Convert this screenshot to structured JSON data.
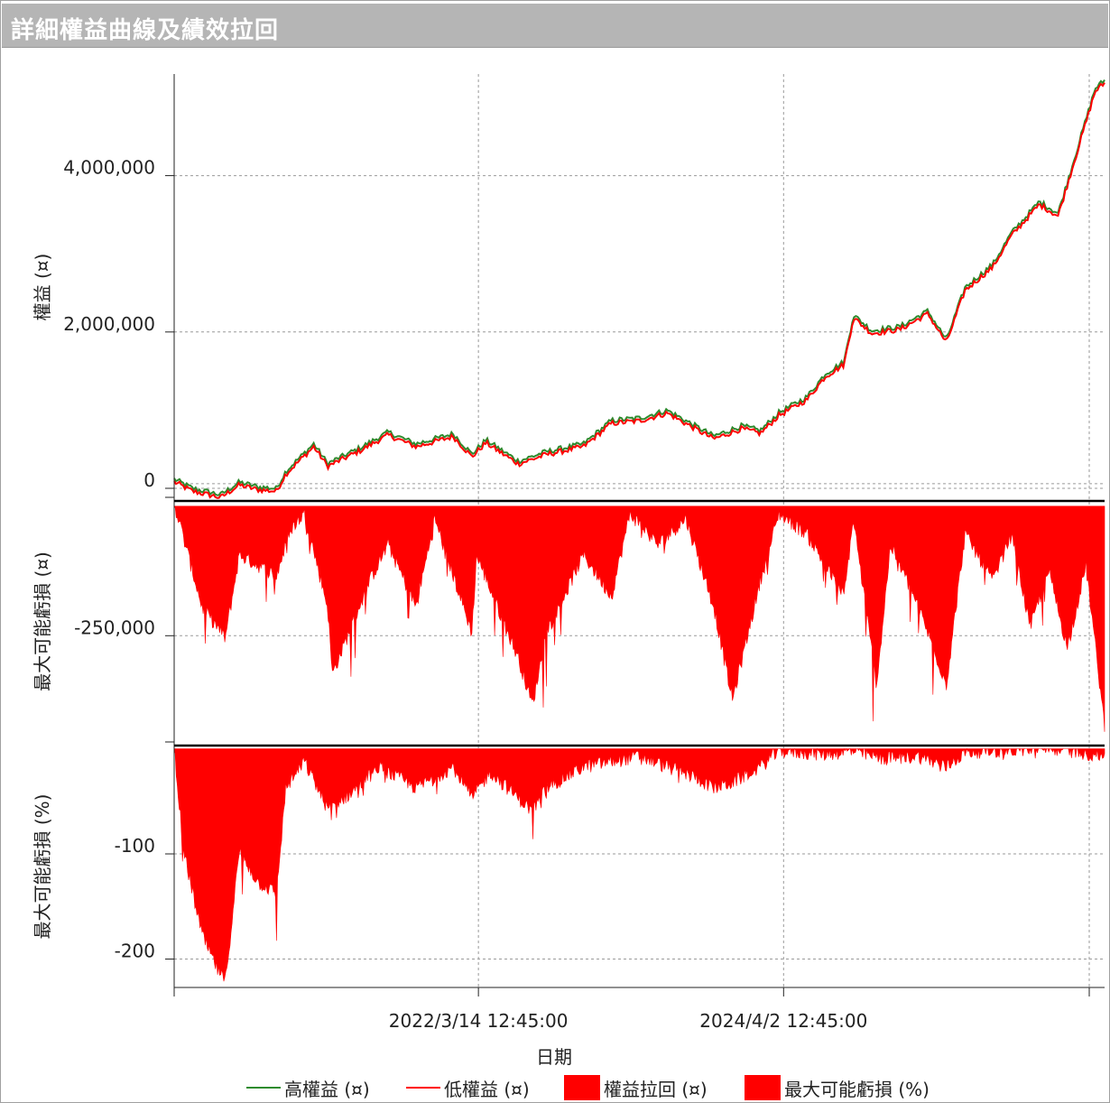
{
  "window": {
    "title": "詳細權益曲線及績效拉回"
  },
  "colors": {
    "high": "#2e8b2e",
    "low": "#ff0000",
    "fill": "#ff0000",
    "grid": "#9a9a9a"
  },
  "chart_data": {
    "type": "line",
    "xlabel": "日期",
    "x_ticks": [
      "2022/3/14 12:45:00",
      "2024/4/2 12:45:00"
    ],
    "panels": [
      {
        "name": "equity",
        "ylabel": "權益 (¤)",
        "y_ticks": [
          "4,000,000",
          "2,000,000",
          "0"
        ],
        "y_tick_values": [
          4000000,
          2000000,
          0
        ],
        "ylim": [
          -150000,
          5300000
        ],
        "keypoints": [
          [
            0.0,
            100000
          ],
          [
            0.02,
            -20000
          ],
          [
            0.05,
            -100000
          ],
          [
            0.07,
            60000
          ],
          [
            0.09,
            0
          ],
          [
            0.11,
            -20000
          ],
          [
            0.12,
            200000
          ],
          [
            0.15,
            550000
          ],
          [
            0.165,
            300000
          ],
          [
            0.2,
            500000
          ],
          [
            0.23,
            700000
          ],
          [
            0.26,
            550000
          ],
          [
            0.3,
            680000
          ],
          [
            0.32,
            420000
          ],
          [
            0.335,
            600000
          ],
          [
            0.37,
            330000
          ],
          [
            0.4,
            450000
          ],
          [
            0.44,
            550000
          ],
          [
            0.47,
            850000
          ],
          [
            0.5,
            880000
          ],
          [
            0.53,
            980000
          ],
          [
            0.56,
            780000
          ],
          [
            0.58,
            650000
          ],
          [
            0.61,
            780000
          ],
          [
            0.63,
            720000
          ],
          [
            0.65,
            950000
          ],
          [
            0.68,
            1150000
          ],
          [
            0.7,
            1450000
          ],
          [
            0.72,
            1600000
          ],
          [
            0.73,
            2200000
          ],
          [
            0.75,
            2000000
          ],
          [
            0.78,
            2050000
          ],
          [
            0.81,
            2250000
          ],
          [
            0.83,
            1880000
          ],
          [
            0.85,
            2550000
          ],
          [
            0.88,
            2850000
          ],
          [
            0.9,
            3250000
          ],
          [
            0.93,
            3650000
          ],
          [
            0.95,
            3500000
          ],
          [
            0.97,
            4300000
          ],
          [
            0.99,
            5100000
          ],
          [
            1.0,
            5200000
          ]
        ]
      },
      {
        "name": "drawdown",
        "ylabel": "最大可能虧損 (¤)",
        "y_ticks": [
          "-250,000"
        ],
        "y_tick_values": [
          -250000
        ],
        "ylim": [
          -455000,
          10000
        ],
        "keypoints": [
          [
            0.0,
            0
          ],
          [
            0.03,
            -200000
          ],
          [
            0.055,
            -260000
          ],
          [
            0.07,
            -100000
          ],
          [
            0.11,
            -140000
          ],
          [
            0.125,
            -50000
          ],
          [
            0.14,
            -20000
          ],
          [
            0.165,
            -200000
          ],
          [
            0.17,
            -330000
          ],
          [
            0.21,
            -150000
          ],
          [
            0.23,
            -80000
          ],
          [
            0.26,
            -200000
          ],
          [
            0.28,
            -30000
          ],
          [
            0.32,
            -250000
          ],
          [
            0.325,
            -100000
          ],
          [
            0.37,
            -300000
          ],
          [
            0.385,
            -390000
          ],
          [
            0.4,
            -250000
          ],
          [
            0.44,
            -100000
          ],
          [
            0.47,
            -180000
          ],
          [
            0.49,
            -20000
          ],
          [
            0.52,
            -80000
          ],
          [
            0.55,
            -30000
          ],
          [
            0.58,
            -200000
          ],
          [
            0.6,
            -380000
          ],
          [
            0.63,
            -150000
          ],
          [
            0.65,
            -20000
          ],
          [
            0.68,
            -60000
          ],
          [
            0.72,
            -180000
          ],
          [
            0.73,
            -30000
          ],
          [
            0.755,
            -350000
          ],
          [
            0.77,
            -80000
          ],
          [
            0.8,
            -200000
          ],
          [
            0.83,
            -350000
          ],
          [
            0.85,
            -60000
          ],
          [
            0.88,
            -150000
          ],
          [
            0.9,
            -60000
          ],
          [
            0.92,
            -240000
          ],
          [
            0.94,
            -130000
          ],
          [
            0.96,
            -280000
          ],
          [
            0.98,
            -120000
          ],
          [
            1.0,
            -430000
          ]
        ]
      },
      {
        "name": "drawdown_pct",
        "ylabel": "最大可能虧損 (%)",
        "y_ticks": [
          "-100",
          "-200"
        ],
        "y_tick_values": [
          -100,
          -200
        ],
        "ylim": [
          -227,
          3
        ],
        "keypoints": [
          [
            0.0,
            0
          ],
          [
            0.01,
            -100
          ],
          [
            0.03,
            -180
          ],
          [
            0.045,
            -210
          ],
          [
            0.055,
            -225
          ],
          [
            0.07,
            -100
          ],
          [
            0.09,
            -130
          ],
          [
            0.11,
            -140
          ],
          [
            0.12,
            -40
          ],
          [
            0.14,
            -15
          ],
          [
            0.165,
            -60
          ],
          [
            0.19,
            -45
          ],
          [
            0.22,
            -20
          ],
          [
            0.26,
            -40
          ],
          [
            0.3,
            -20
          ],
          [
            0.32,
            -50
          ],
          [
            0.34,
            -25
          ],
          [
            0.37,
            -50
          ],
          [
            0.385,
            -62
          ],
          [
            0.4,
            -40
          ],
          [
            0.44,
            -20
          ],
          [
            0.47,
            -15
          ],
          [
            0.5,
            -10
          ],
          [
            0.53,
            -20
          ],
          [
            0.56,
            -30
          ],
          [
            0.58,
            -40
          ],
          [
            0.6,
            -35
          ],
          [
            0.63,
            -20
          ],
          [
            0.65,
            -5
          ],
          [
            0.7,
            -8
          ],
          [
            0.73,
            -5
          ],
          [
            0.76,
            -12
          ],
          [
            0.8,
            -10
          ],
          [
            0.83,
            -20
          ],
          [
            0.85,
            -6
          ],
          [
            0.9,
            -4
          ],
          [
            0.95,
            -3
          ],
          [
            1.0,
            -10
          ]
        ]
      }
    ],
    "legend": [
      "高權益 (¤)",
      "低權益 (¤)",
      "權益拉回 (¤)",
      "最大可能虧損 (%)"
    ],
    "grid": true,
    "legend_position": "bottom"
  }
}
